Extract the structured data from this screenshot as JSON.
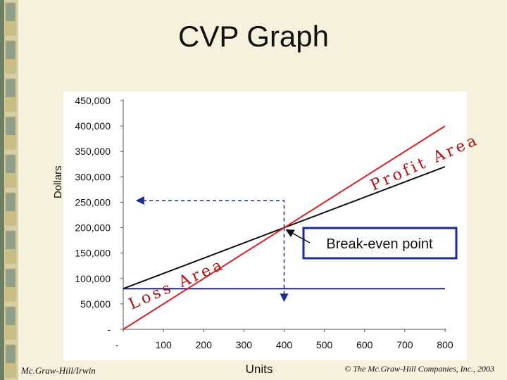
{
  "slide": {
    "title": "CVP Graph",
    "footer_left": "Mc.Graw-Hill/Irwin",
    "footer_right": "© The Mc.Graw-Hill Companies, Inc., 2003"
  },
  "colors": {
    "background": "#f5f1dc",
    "sales_line": "#e02020",
    "cost_line": "#111111",
    "fixed_cost_line": "#1a2a9a",
    "dashed_guides": "#1a2a9a",
    "callout_border": "#1a2a9a"
  },
  "chart_data": {
    "type": "line",
    "title": "",
    "xlabel": "Units",
    "ylabel": "Dollars",
    "xlim": [
      0,
      800
    ],
    "ylim": [
      0,
      450000
    ],
    "x_ticks": [
      "-",
      "100",
      "200",
      "300",
      "400",
      "500",
      "600",
      "700",
      "800"
    ],
    "x_tick_values": [
      0,
      100,
      200,
      300,
      400,
      500,
      600,
      700,
      800
    ],
    "y_ticks": [
      "-",
      "50,000",
      "100,000",
      "150,000",
      "200,000",
      "250,000",
      "300,000",
      "350,000",
      "400,000",
      "450,000"
    ],
    "y_tick_values": [
      0,
      50000,
      100000,
      150000,
      200000,
      250000,
      300000,
      350000,
      400000,
      450000
    ],
    "grid": false,
    "series": [
      {
        "role": "sales",
        "x": [
          0,
          800
        ],
        "y": [
          0,
          400000
        ]
      },
      {
        "role": "total_cost",
        "x": [
          0,
          800
        ],
        "y": [
          80000,
          320000
        ]
      },
      {
        "role": "fixed_cost",
        "x": [
          0,
          800
        ],
        "y": [
          80000,
          80000
        ]
      }
    ],
    "break_even": {
      "units": 400,
      "dollars": 200000
    },
    "annotations": {
      "profit_area": "Profit Area",
      "loss_area": "Loss Area",
      "break_even": "Break-even point"
    }
  }
}
